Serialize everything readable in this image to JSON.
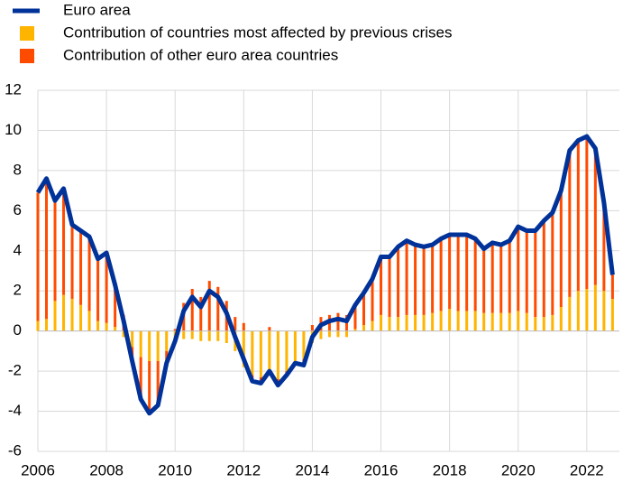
{
  "chart_data": {
    "type": "bar",
    "x": [
      2006,
      2006.25,
      2006.5,
      2006.75,
      2007,
      2007.25,
      2007.5,
      2007.75,
      2008,
      2008.25,
      2008.5,
      2008.75,
      2009,
      2009.25,
      2009.5,
      2009.75,
      2010,
      2010.25,
      2010.5,
      2010.75,
      2011,
      2011.25,
      2011.5,
      2011.75,
      2012,
      2012.25,
      2012.5,
      2012.75,
      2013,
      2013.25,
      2013.5,
      2013.75,
      2014,
      2014.25,
      2014.5,
      2014.75,
      2015,
      2015.25,
      2015.5,
      2015.75,
      2016,
      2016.25,
      2016.5,
      2016.75,
      2017,
      2017.25,
      2017.5,
      2017.75,
      2018,
      2018.25,
      2018.5,
      2018.75,
      2019,
      2019.25,
      2019.5,
      2019.75,
      2020,
      2020.25,
      2020.5,
      2020.75,
      2021,
      2021.25,
      2021.5,
      2021.75,
      2022,
      2022.25,
      2022.5,
      2022.75
    ],
    "series": [
      {
        "name": "Euro area",
        "mark": "line",
        "color": "#003299",
        "values": [
          6.9,
          7.6,
          6.5,
          7.1,
          5.3,
          5.0,
          4.7,
          3.6,
          3.9,
          2.3,
          0.5,
          -1.5,
          -3.4,
          -4.1,
          -3.7,
          -1.6,
          -0.5,
          1.0,
          1.7,
          1.2,
          2.0,
          1.7,
          0.9,
          -0.3,
          -1.4,
          -2.5,
          -2.6,
          -2.0,
          -2.7,
          -2.2,
          -1.6,
          -1.7,
          -0.3,
          0.3,
          0.5,
          0.6,
          0.5,
          1.3,
          1.9,
          2.6,
          3.7,
          3.7,
          4.2,
          4.5,
          4.3,
          4.2,
          4.3,
          4.6,
          4.8,
          4.8,
          4.8,
          4.6,
          4.1,
          4.4,
          4.3,
          4.5,
          5.2,
          5.0,
          5.0,
          5.5,
          5.9,
          7.0,
          9.0,
          9.5,
          9.7,
          9.1,
          6.4,
          2.8
        ]
      },
      {
        "name": "Contribution of countries most affected by previous crises",
        "mark": "bar",
        "color": "#ffb400",
        "values": [
          0.5,
          0.6,
          1.5,
          1.8,
          1.6,
          1.3,
          1.0,
          0.5,
          0.4,
          0.2,
          -0.3,
          -0.8,
          -1.3,
          -1.5,
          -1.5,
          -1.0,
          -0.6,
          -0.4,
          -0.4,
          -0.5,
          -0.5,
          -0.5,
          -0.6,
          -1.0,
          -1.8,
          -2.2,
          -2.3,
          -2.2,
          -2.4,
          -2.0,
          -1.6,
          -1.4,
          -0.6,
          -0.4,
          -0.3,
          -0.3,
          -0.3,
          0.1,
          0.3,
          0.5,
          0.8,
          0.7,
          0.7,
          0.8,
          0.8,
          0.8,
          0.9,
          1.0,
          1.1,
          1.0,
          1.0,
          1.0,
          0.9,
          0.9,
          0.9,
          0.9,
          1.0,
          0.9,
          0.7,
          0.7,
          0.8,
          1.2,
          1.7,
          2.0,
          2.1,
          2.3,
          2.0,
          1.6
        ]
      },
      {
        "name": "Contribution of other euro area countries",
        "mark": "bar",
        "color": "#ff4b00",
        "values": [
          6.4,
          7.0,
          5.0,
          5.3,
          3.7,
          3.7,
          3.7,
          3.1,
          3.5,
          2.1,
          0.8,
          -0.7,
          -2.1,
          -2.6,
          -2.2,
          -0.6,
          0.1,
          1.4,
          2.1,
          1.7,
          2.5,
          2.2,
          1.5,
          0.7,
          0.4,
          -0.3,
          -0.3,
          0.2,
          -0.3,
          -0.2,
          0.0,
          -0.3,
          0.3,
          0.7,
          0.8,
          0.9,
          0.8,
          1.2,
          1.6,
          2.1,
          2.9,
          3.0,
          3.5,
          3.7,
          3.5,
          3.4,
          3.4,
          3.6,
          3.7,
          3.8,
          3.8,
          3.6,
          3.2,
          3.5,
          3.4,
          3.6,
          4.2,
          4.1,
          4.3,
          4.8,
          5.1,
          5.8,
          7.3,
          7.5,
          7.6,
          6.8,
          4.4,
          1.2
        ]
      }
    ],
    "xlim": [
      2006,
      2022.95
    ],
    "xticks": [
      2006,
      2008,
      2010,
      2012,
      2014,
      2016,
      2018,
      2020,
      2022
    ],
    "ylim": [
      -6,
      12
    ],
    "yticks": [
      -6,
      -4,
      -2,
      0,
      2,
      4,
      6,
      8,
      10,
      12
    ],
    "grid": true
  }
}
